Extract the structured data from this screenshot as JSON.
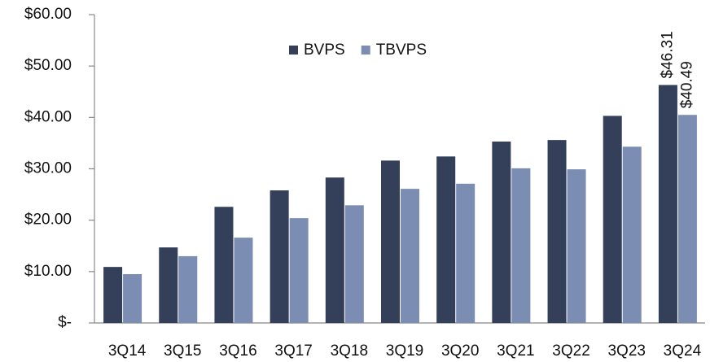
{
  "chart_data": {
    "type": "bar",
    "categories": [
      "3Q14",
      "3Q15",
      "3Q16",
      "3Q17",
      "3Q18",
      "3Q19",
      "3Q20",
      "3Q21",
      "3Q22",
      "3Q23",
      "3Q24"
    ],
    "series": [
      {
        "name": "BVPS",
        "color": "#343f5a",
        "values": [
          10.9,
          14.7,
          22.6,
          25.8,
          28.3,
          31.6,
          32.4,
          35.3,
          35.6,
          40.3,
          46.31
        ],
        "value_labels": [
          null,
          null,
          null,
          null,
          null,
          null,
          null,
          null,
          null,
          null,
          "$46.31"
        ]
      },
      {
        "name": "TBVPS",
        "color": "#7b8db3",
        "values": [
          9.5,
          13.0,
          16.6,
          20.4,
          22.9,
          26.1,
          27.1,
          30.1,
          29.9,
          34.3,
          40.49
        ],
        "value_labels": [
          null,
          null,
          null,
          null,
          null,
          null,
          null,
          null,
          null,
          null,
          "$40.49"
        ]
      }
    ],
    "ylim": [
      0,
      60
    ],
    "yticks": [
      {
        "value": 0,
        "label": "$-"
      },
      {
        "value": 10,
        "label": "$10.00"
      },
      {
        "value": 20,
        "label": "$20.00"
      },
      {
        "value": 30,
        "label": "$30.00"
      },
      {
        "value": 40,
        "label": "$40.00"
      },
      {
        "value": 50,
        "label": "$50.00"
      },
      {
        "value": 60,
        "label": "$60.00"
      }
    ],
    "grid": false,
    "legend": "top"
  }
}
